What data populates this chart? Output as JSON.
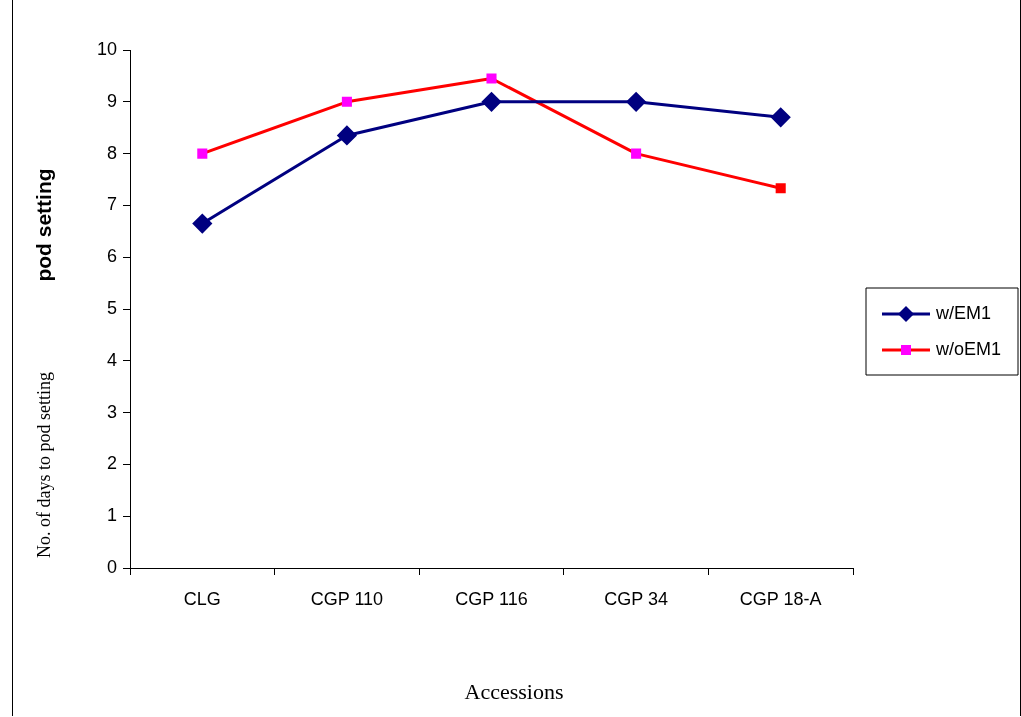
{
  "chart_data": {
    "type": "line",
    "ylabel": "pod setting",
    "xlabel": "Accessions",
    "annotations": [
      "No. of days to pod setting"
    ],
    "categories": [
      "CLG",
      "CGP 110",
      "CGP 116",
      "CGP 34",
      "CGP 18-A"
    ],
    "series": [
      {
        "name": "w/EM1",
        "color": "#000080",
        "marker": "diamond",
        "values": [
          6.65,
          8.35,
          9,
          9,
          8.7
        ]
      },
      {
        "name": "w/oEM1",
        "color": "#ff0000",
        "marker": "square",
        "colors": [
          "#ff00ff",
          "#ff00ff",
          "#ff00ff",
          "#ff00ff",
          "#ff0000"
        ],
        "values": [
          8,
          9,
          9.45,
          8,
          7.33
        ]
      }
    ],
    "ylim": [
      0,
      10
    ],
    "yticks": [
      0,
      1,
      2,
      3,
      4,
      5,
      6,
      7,
      8,
      9,
      10
    ],
    "grid": false,
    "legend": "right"
  }
}
